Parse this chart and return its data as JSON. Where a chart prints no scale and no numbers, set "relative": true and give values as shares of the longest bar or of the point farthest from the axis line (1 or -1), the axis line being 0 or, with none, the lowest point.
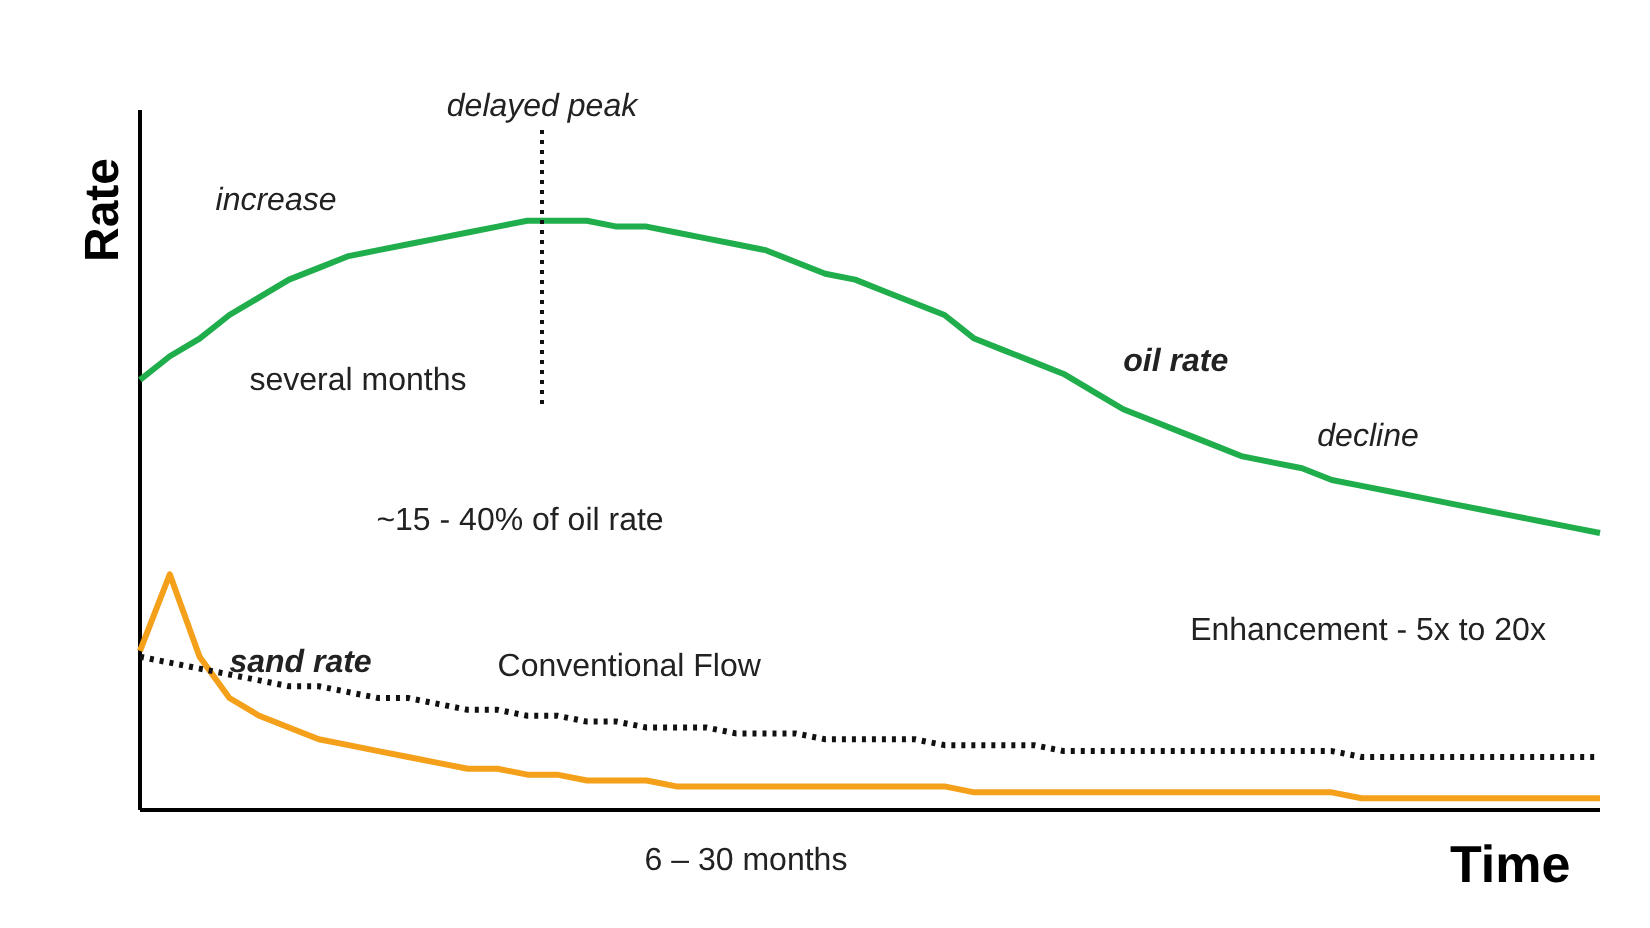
{
  "chart_data": {
    "type": "line",
    "relative": true,
    "xlabel": "Time",
    "ylabel": "Rate",
    "categories": [
      null,
      null,
      null,
      null,
      null,
      null,
      null,
      null,
      null,
      null,
      null,
      null,
      null,
      null,
      null,
      null,
      null,
      null,
      null,
      null,
      null,
      null,
      null,
      null,
      null,
      null,
      null,
      null,
      null,
      null,
      null,
      null,
      null,
      null,
      null,
      null,
      null,
      null,
      null,
      null,
      null,
      null,
      null,
      null,
      null,
      null,
      null,
      null,
      null,
      null
    ],
    "marker": "none",
    "series": [
      {
        "name": "oil rate",
        "color": "#1fae4b",
        "line_style": "solid",
        "values": [
          0.73,
          0.77,
          0.8,
          0.84,
          0.87,
          0.9,
          0.92,
          0.94,
          0.95,
          0.96,
          0.97,
          0.98,
          0.99,
          1.0,
          1.0,
          1.0,
          0.99,
          0.99,
          0.98,
          0.97,
          0.96,
          0.95,
          0.93,
          0.91,
          0.9,
          0.88,
          0.86,
          0.84,
          0.8,
          0.78,
          0.76,
          0.74,
          0.71,
          0.68,
          0.66,
          0.64,
          0.62,
          0.6,
          0.59,
          0.58,
          0.56,
          0.55,
          0.54,
          0.53,
          0.52,
          0.51,
          0.5,
          0.49,
          0.48,
          0.47
        ]
      },
      {
        "name": "sand rate",
        "color": "#f5a01a",
        "line_style": "solid",
        "values": [
          0.27,
          0.4,
          0.26,
          0.19,
          0.16,
          0.14,
          0.12,
          0.11,
          0.1,
          0.09,
          0.08,
          0.07,
          0.07,
          0.06,
          0.06,
          0.05,
          0.05,
          0.05,
          0.04,
          0.04,
          0.04,
          0.04,
          0.04,
          0.04,
          0.04,
          0.04,
          0.04,
          0.04,
          0.03,
          0.03,
          0.03,
          0.03,
          0.03,
          0.03,
          0.03,
          0.03,
          0.03,
          0.03,
          0.03,
          0.03,
          0.03,
          0.02,
          0.02,
          0.02,
          0.02,
          0.02,
          0.02,
          0.02,
          0.02,
          0.02
        ]
      },
      {
        "name": "Conventional Flow",
        "color": "#111111",
        "line_style": "dotted",
        "values": [
          0.26,
          0.25,
          0.24,
          0.23,
          0.22,
          0.21,
          0.21,
          0.2,
          0.19,
          0.19,
          0.18,
          0.17,
          0.17,
          0.16,
          0.16,
          0.15,
          0.15,
          0.14,
          0.14,
          0.14,
          0.13,
          0.13,
          0.13,
          0.12,
          0.12,
          0.12,
          0.12,
          0.11,
          0.11,
          0.11,
          0.11,
          0.1,
          0.1,
          0.1,
          0.1,
          0.1,
          0.1,
          0.1,
          0.1,
          0.1,
          0.1,
          0.09,
          0.09,
          0.09,
          0.09,
          0.09,
          0.09,
          0.09,
          0.09,
          0.09
        ]
      }
    ],
    "annotations": [
      "increase",
      "delayed peak",
      "several months",
      "decline",
      "~15 - 40% of oil rate",
      "Enhancement - 5x to 20x",
      "6 – 30 months"
    ]
  }
}
